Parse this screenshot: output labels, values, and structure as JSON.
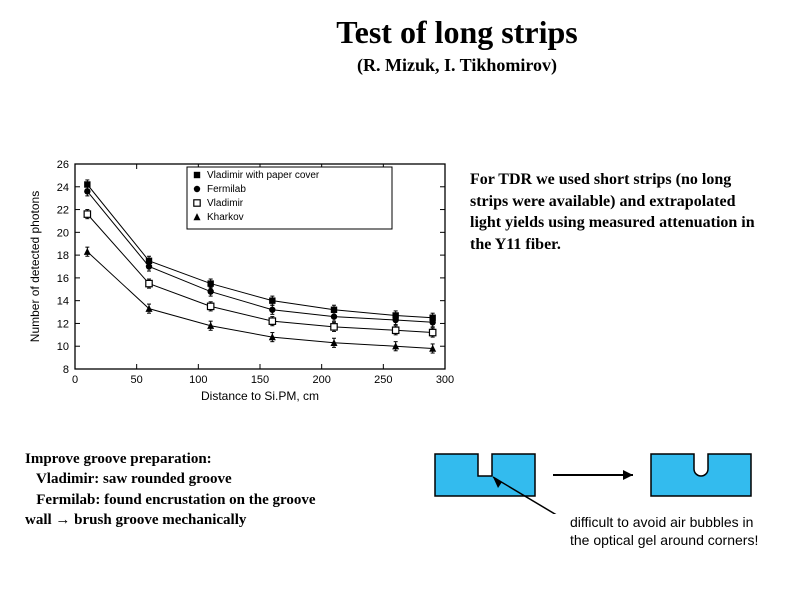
{
  "title": "Test of long strips",
  "title_fontsize": 32,
  "subtitle": "(R. Mizuk, I. Tikhomirov)",
  "subtitle_fontsize": 18,
  "chart": {
    "type": "scatter-line",
    "xlabel": "Distance to Si.PM, cm",
    "ylabel": "Number of detected photons",
    "label_fontsize": 11,
    "xlim": [
      0,
      300
    ],
    "ylim": [
      8,
      26
    ],
    "xtick_step": 50,
    "ytick_step": 2,
    "background_color": "#ffffff",
    "axis_color": "#000000",
    "grid": false,
    "legend": {
      "items": [
        {
          "label": "Vladimir with paper cover",
          "marker": "filled-square"
        },
        {
          "label": "Fermilab",
          "marker": "filled-circle"
        },
        {
          "label": "Vladimir",
          "marker": "open-square"
        },
        {
          "label": "Kharkov",
          "marker": "filled-triangle"
        }
      ],
      "position": "top-right-inside",
      "fontsize": 10
    },
    "series": [
      {
        "name": "Vladimir with paper cover",
        "marker": "filled-square",
        "color": "#000000",
        "x": [
          10,
          60,
          110,
          160,
          210,
          260,
          290
        ],
        "y": [
          24.2,
          17.5,
          15.5,
          14.0,
          13.2,
          12.7,
          12.5
        ],
        "yerr": 0.4
      },
      {
        "name": "Fermilab",
        "marker": "filled-circle",
        "color": "#000000",
        "x": [
          10,
          60,
          110,
          160,
          210,
          260,
          290
        ],
        "y": [
          23.6,
          17.0,
          14.8,
          13.2,
          12.6,
          12.3,
          12.1
        ],
        "yerr": 0.4
      },
      {
        "name": "Vladimir",
        "marker": "open-square",
        "color": "#000000",
        "x": [
          10,
          60,
          110,
          160,
          210,
          260,
          290
        ],
        "y": [
          21.6,
          15.5,
          13.5,
          12.2,
          11.7,
          11.4,
          11.2
        ],
        "yerr": 0.4
      },
      {
        "name": "Kharkov",
        "marker": "filled-triangle",
        "color": "#000000",
        "x": [
          10,
          60,
          110,
          160,
          210,
          260,
          290
        ],
        "y": [
          18.3,
          13.3,
          11.8,
          10.8,
          10.3,
          10.0,
          9.8
        ],
        "yerr": 0.4
      }
    ]
  },
  "side_text": "For TDR we used short strips (no long strips were available) and extrapolated light yields using measured attenuation in the Y11 fiber.",
  "side_text_fontsize": 16,
  "groove_text": {
    "line1": "Improve groove preparation:",
    "line2": "  Vladimir: saw rounded groove",
    "line3": "  Fermilab: found encrustation on the groove",
    "line4": "wall → brush groove mechanically"
  },
  "groove_text_fontsize": 15,
  "diagrams": {
    "block_color": "#33bbee",
    "outline_color": "#000000",
    "arrow_color": "#000000",
    "block_width": 100,
    "block_height": 42,
    "groove_width": 14,
    "groove_depth": 22
  },
  "caption": "difficult to avoid air bubbles in the optical gel around corners!",
  "caption_fontsize": 14
}
